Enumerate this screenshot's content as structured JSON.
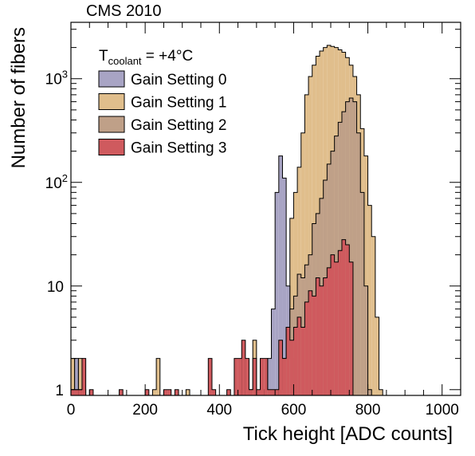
{
  "chart_data": {
    "type": "histogram",
    "title": "CMS 2010",
    "xlabel": "Tick height [ADC counts]",
    "ylabel": "Number of fibers",
    "xlim": [
      0,
      1050
    ],
    "ylim": [
      0.88,
      3500
    ],
    "yscale": "log",
    "bin_width": 10,
    "x_ticks": [
      "0",
      "200",
      "400",
      "600",
      "800",
      "1000"
    ],
    "x_tick_values": [
      0,
      200,
      400,
      600,
      800,
      1000
    ],
    "y_ticks": [
      "1",
      "10",
      "10^2",
      "10^3"
    ],
    "y_tick_values": [
      1,
      10,
      100,
      1000
    ],
    "legend": {
      "placement": "top-left",
      "header_main": "T",
      "header_sub": "coolant",
      "header_rest": " = +4°C",
      "entries": [
        {
          "label": "Gain Setting 0",
          "color": "#a8a4c4"
        },
        {
          "label": "Gain Setting 1",
          "color": "#e0be8c"
        },
        {
          "label": "Gain Setting 2",
          "color": "#bfa088"
        },
        {
          "label": "Gain Setting 3",
          "color": "#cf5a5e"
        }
      ]
    },
    "series": [
      {
        "name": "Gain Setting 1",
        "color": "#e0be8c",
        "bins": [
          [
            0,
            2
          ],
          [
            20,
            2
          ],
          [
            220,
            1
          ],
          [
            230,
            2
          ],
          [
            310,
            1
          ],
          [
            450,
            1
          ],
          [
            460,
            2
          ],
          [
            480,
            1
          ],
          [
            490,
            3
          ],
          [
            520,
            1
          ],
          [
            530,
            1
          ],
          [
            550,
            1
          ],
          [
            560,
            1
          ],
          [
            580,
            4
          ],
          [
            590,
            45
          ],
          [
            600,
            80
          ],
          [
            610,
            140
          ],
          [
            620,
            300
          ],
          [
            630,
            700
          ],
          [
            640,
            1050
          ],
          [
            650,
            1350
          ],
          [
            660,
            1650
          ],
          [
            670,
            1850
          ],
          [
            680,
            2000
          ],
          [
            690,
            2100
          ],
          [
            700,
            2050
          ],
          [
            710,
            2000
          ],
          [
            720,
            1900
          ],
          [
            730,
            1800
          ],
          [
            740,
            1600
          ],
          [
            750,
            1350
          ],
          [
            760,
            1050
          ],
          [
            770,
            700
          ],
          [
            780,
            330
          ],
          [
            790,
            180
          ],
          [
            800,
            60
          ],
          [
            810,
            30
          ],
          [
            820,
            5
          ],
          [
            830,
            1
          ]
        ]
      },
      {
        "name": "Gain Setting 0",
        "color": "#a8a4c4",
        "bins": [
          [
            0,
            1
          ],
          [
            10,
            2
          ],
          [
            30,
            1
          ],
          [
            520,
            1
          ],
          [
            530,
            2
          ],
          [
            540,
            6
          ],
          [
            550,
            80
          ],
          [
            560,
            180
          ],
          [
            570,
            110
          ],
          [
            580,
            10
          ],
          [
            590,
            2
          ]
        ]
      },
      {
        "name": "Gain Setting 2",
        "color": "#bfa088",
        "bins": [
          [
            450,
            1
          ],
          [
            560,
            1
          ],
          [
            570,
            2
          ],
          [
            580,
            4
          ],
          [
            590,
            6
          ],
          [
            600,
            8
          ],
          [
            610,
            13
          ],
          [
            620,
            12
          ],
          [
            630,
            16
          ],
          [
            640,
            20
          ],
          [
            650,
            40
          ],
          [
            660,
            50
          ],
          [
            670,
            70
          ],
          [
            680,
            105
          ],
          [
            690,
            150
          ],
          [
            700,
            200
          ],
          [
            710,
            280
          ],
          [
            720,
            380
          ],
          [
            730,
            480
          ],
          [
            740,
            600
          ],
          [
            750,
            650
          ],
          [
            760,
            600
          ],
          [
            770,
            300
          ],
          [
            780,
            80
          ],
          [
            790,
            10
          ],
          [
            800,
            1
          ]
        ]
      },
      {
        "name": "Gain Setting 3",
        "color": "#cf5a5e",
        "bins": [
          [
            0,
            1
          ],
          [
            10,
            1
          ],
          [
            20,
            1
          ],
          [
            30,
            2
          ],
          [
            50,
            1
          ],
          [
            130,
            1
          ],
          [
            200,
            1
          ],
          [
            250,
            1
          ],
          [
            260,
            1
          ],
          [
            280,
            1
          ],
          [
            370,
            2
          ],
          [
            380,
            1
          ],
          [
            420,
            1
          ],
          [
            440,
            2
          ],
          [
            450,
            2
          ],
          [
            460,
            3
          ],
          [
            470,
            2
          ],
          [
            480,
            1
          ],
          [
            490,
            2
          ],
          [
            500,
            1
          ],
          [
            510,
            2
          ],
          [
            520,
            2
          ],
          [
            530,
            1
          ],
          [
            540,
            1
          ],
          [
            550,
            1
          ],
          [
            560,
            3
          ],
          [
            570,
            2
          ],
          [
            580,
            4
          ],
          [
            590,
            3
          ],
          [
            600,
            4
          ],
          [
            610,
            5
          ],
          [
            620,
            4
          ],
          [
            630,
            7
          ],
          [
            640,
            9
          ],
          [
            650,
            8
          ],
          [
            660,
            12
          ],
          [
            670,
            10
          ],
          [
            680,
            12
          ],
          [
            690,
            15
          ],
          [
            700,
            20
          ],
          [
            710,
            17
          ],
          [
            720,
            22
          ],
          [
            730,
            28
          ],
          [
            740,
            25
          ],
          [
            750,
            17
          ]
        ]
      }
    ]
  }
}
